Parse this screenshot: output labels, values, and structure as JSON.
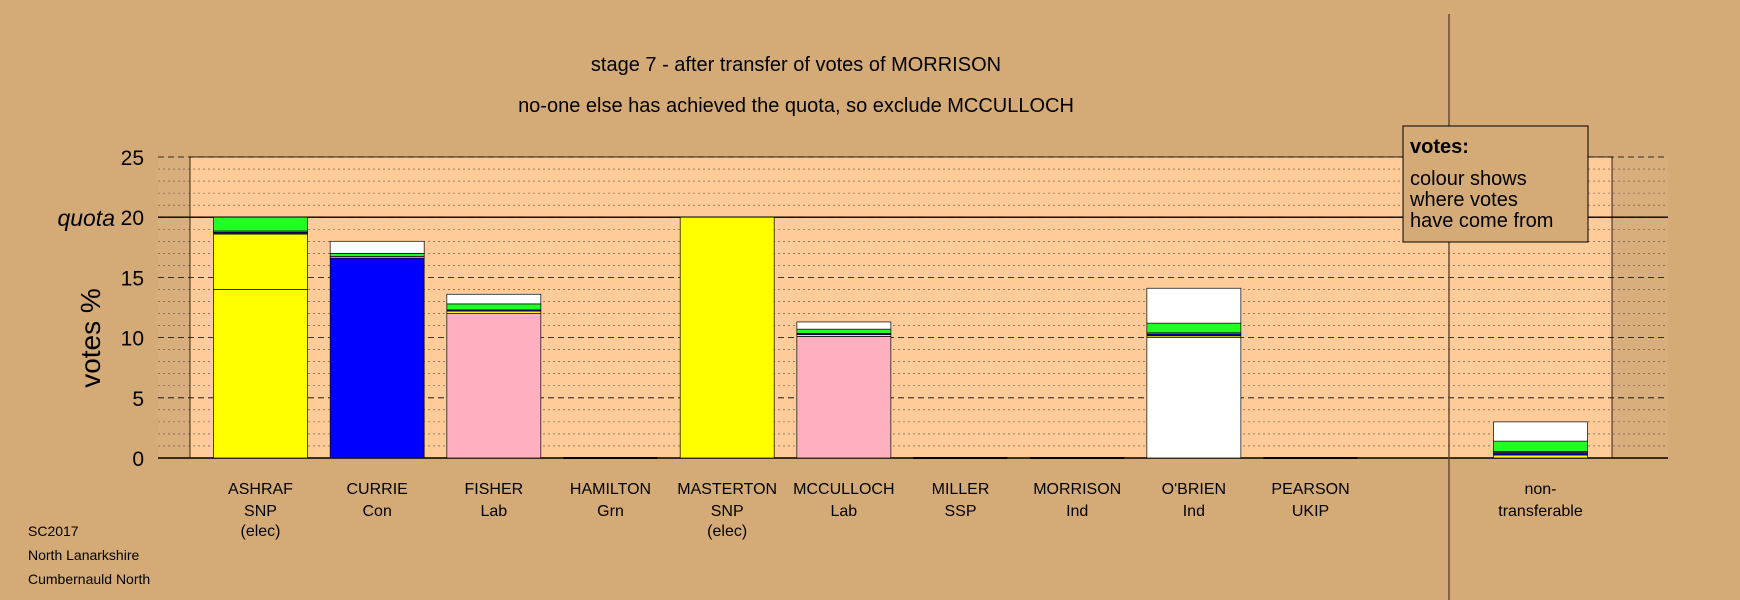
{
  "chart_data": {
    "type": "bar",
    "stacked": true,
    "title": "stage 7 - after transfer of votes of MORRISON",
    "subtitle": "no-one else has achieved the quota, so exclude MCCULLOCH",
    "ylabel": "votes %",
    "ylim": [
      0,
      25
    ],
    "yticks": [
      0,
      5,
      10,
      15,
      20,
      25
    ],
    "quota": {
      "value": 20,
      "label": "quota"
    },
    "legend": {
      "position": "top-right",
      "title": "votes:",
      "lines": [
        "colour shows",
        "where votes",
        "have come from"
      ]
    },
    "colors": {
      "SNP": "#ffff00",
      "Con": "#0000ff",
      "Lab": "#ffb0c0",
      "Grn": "#22ff22",
      "Ind": "#ffffff",
      "SSP": "#ff0000",
      "UKIP": "#7b3f9e",
      "plot_bg": "#ffcc99",
      "page_bg": "#d4aa77",
      "side_bg": "#d9ae7d"
    },
    "candidates": [
      {
        "name": "ASHRAF",
        "party": "SNP",
        "note": "(elec)",
        "segments": [
          {
            "from": "SNP",
            "value": 14.0
          },
          {
            "from": "SNP",
            "value": 4.6
          },
          {
            "from": "Con",
            "value": 0.15
          },
          {
            "from": "Lab",
            "value": 0.1
          },
          {
            "from": "Grn",
            "value": 1.15
          }
        ]
      },
      {
        "name": "CURRIE",
        "party": "Con",
        "note": "",
        "segments": [
          {
            "from": "Con",
            "value": 16.6
          },
          {
            "from": "Lab",
            "value": 0.15
          },
          {
            "from": "Grn",
            "value": 0.25
          },
          {
            "from": "Ind",
            "value": 1.0
          }
        ]
      },
      {
        "name": "FISHER",
        "party": "Lab",
        "note": "",
        "segments": [
          {
            "from": "Lab",
            "value": 12.0
          },
          {
            "from": "SNP",
            "value": 0.2
          },
          {
            "from": "Con",
            "value": 0.1
          },
          {
            "from": "Grn",
            "value": 0.5
          },
          {
            "from": "Ind",
            "value": 0.8
          }
        ]
      },
      {
        "name": "HAMILTON",
        "party": "Grn",
        "note": "",
        "segments": []
      },
      {
        "name": "MASTERTON",
        "party": "SNP",
        "note": "(elec)",
        "segments": [
          {
            "from": "SNP",
            "value": 20.0
          }
        ]
      },
      {
        "name": "MCCULLOCH",
        "party": "Lab",
        "note": "",
        "segments": [
          {
            "from": "Lab",
            "value": 10.1
          },
          {
            "from": "SNP",
            "value": 0.15
          },
          {
            "from": "Con",
            "value": 0.1
          },
          {
            "from": "Grn",
            "value": 0.35
          },
          {
            "from": "Ind",
            "value": 0.6
          }
        ]
      },
      {
        "name": "MILLER",
        "party": "SSP",
        "note": "",
        "segments": []
      },
      {
        "name": "MORRISON",
        "party": "Ind",
        "note": "",
        "segments": []
      },
      {
        "name": "O'BRIEN",
        "party": "Ind",
        "note": "",
        "segments": [
          {
            "from": "Ind",
            "value": 10.0
          },
          {
            "from": "SNP",
            "value": 0.15
          },
          {
            "from": "Con",
            "value": 0.15
          },
          {
            "from": "Lab",
            "value": 0.1
          },
          {
            "from": "Grn",
            "value": 0.8
          },
          {
            "from": "Ind",
            "value": 2.9
          }
        ]
      },
      {
        "name": "PEARSON",
        "party": "UKIP",
        "note": "",
        "segments": []
      }
    ],
    "nontransferable": {
      "label_lines": [
        "non-",
        "transferable"
      ],
      "segments": [
        {
          "from": "SNP",
          "value": 0.25
        },
        {
          "from": "Con",
          "value": 0.2
        },
        {
          "from": "Lab",
          "value": 0.1
        },
        {
          "from": "Grn",
          "value": 0.85
        },
        {
          "from": "Ind",
          "value": 1.6
        }
      ]
    }
  },
  "footer": {
    "lines": [
      "SC2017",
      "North Lanarkshire",
      "Cumbernauld North"
    ]
  }
}
